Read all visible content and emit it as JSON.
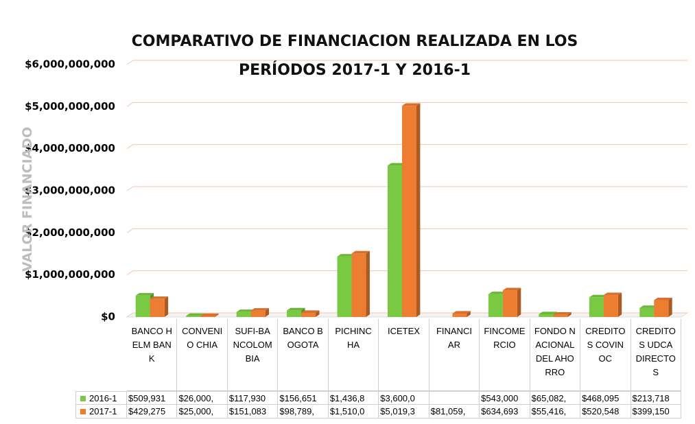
{
  "chart_data": {
    "type": "bar",
    "title": "COMPARATIVO DE FINANCIACION REALIZADA EN LOS PERÍODOS 2017-1 Y 2016-1",
    "y_label": "VALOR FINANCIADO",
    "categories": [
      "BANCO HELM BANK",
      "CONVENIO CHIA",
      "SUFI-BANCOLOMBIA",
      "BANCO BOGOTA",
      "PICHINCHA",
      "ICETEX",
      "FINANCIAR",
      "FINCOMERCIO",
      "FONDO NACIONAL DEL AHORRO",
      "CREDITOS COVINOC",
      "CREDITOS UDCA DIRECTOS"
    ],
    "series": [
      {
        "name": "2016-1",
        "color": "#7ac943",
        "values": [
          509931000,
          26000000,
          117930000,
          156651000,
          1436800000,
          3600000000,
          null,
          543000000,
          65082000,
          468095000,
          213718000
        ],
        "value_labels": [
          "$509,931",
          "$26,000,",
          "$117,930",
          "$156,651",
          "$1,436,8",
          "$3,600,0",
          null,
          "$543,000",
          "$65,082,",
          "$468,095",
          "$213,718"
        ]
      },
      {
        "name": "2017-1",
        "color": "#ed7d31",
        "values": [
          429275000,
          25000000,
          151083000,
          98789000,
          1510000000,
          5019300000,
          81059000,
          634693000,
          55416000,
          520548000,
          399150000
        ],
        "value_labels": [
          "$429,275",
          "$25,000,",
          "$151,083",
          "$98,789,",
          "$1,510,0",
          "$5,019,3",
          "$81,059,",
          "$634,693",
          "$55,416,",
          "$520,548",
          "$399,150"
        ]
      }
    ],
    "ylim": [
      0,
      6000000000
    ],
    "yticks": [
      {
        "value": 0,
        "label": "$0"
      },
      {
        "value": 1000000000,
        "label": "$1,000,000,000"
      },
      {
        "value": 2000000000,
        "label": "$2,000,000,000"
      },
      {
        "value": 3000000000,
        "label": "$3,000,000,000"
      },
      {
        "value": 4000000000,
        "label": "$4,000,000,000"
      },
      {
        "value": 5000000000,
        "label": "$5,000,000,000"
      },
      {
        "value": 6000000000,
        "label": "$6,000,000,000"
      }
    ],
    "grid": true
  }
}
